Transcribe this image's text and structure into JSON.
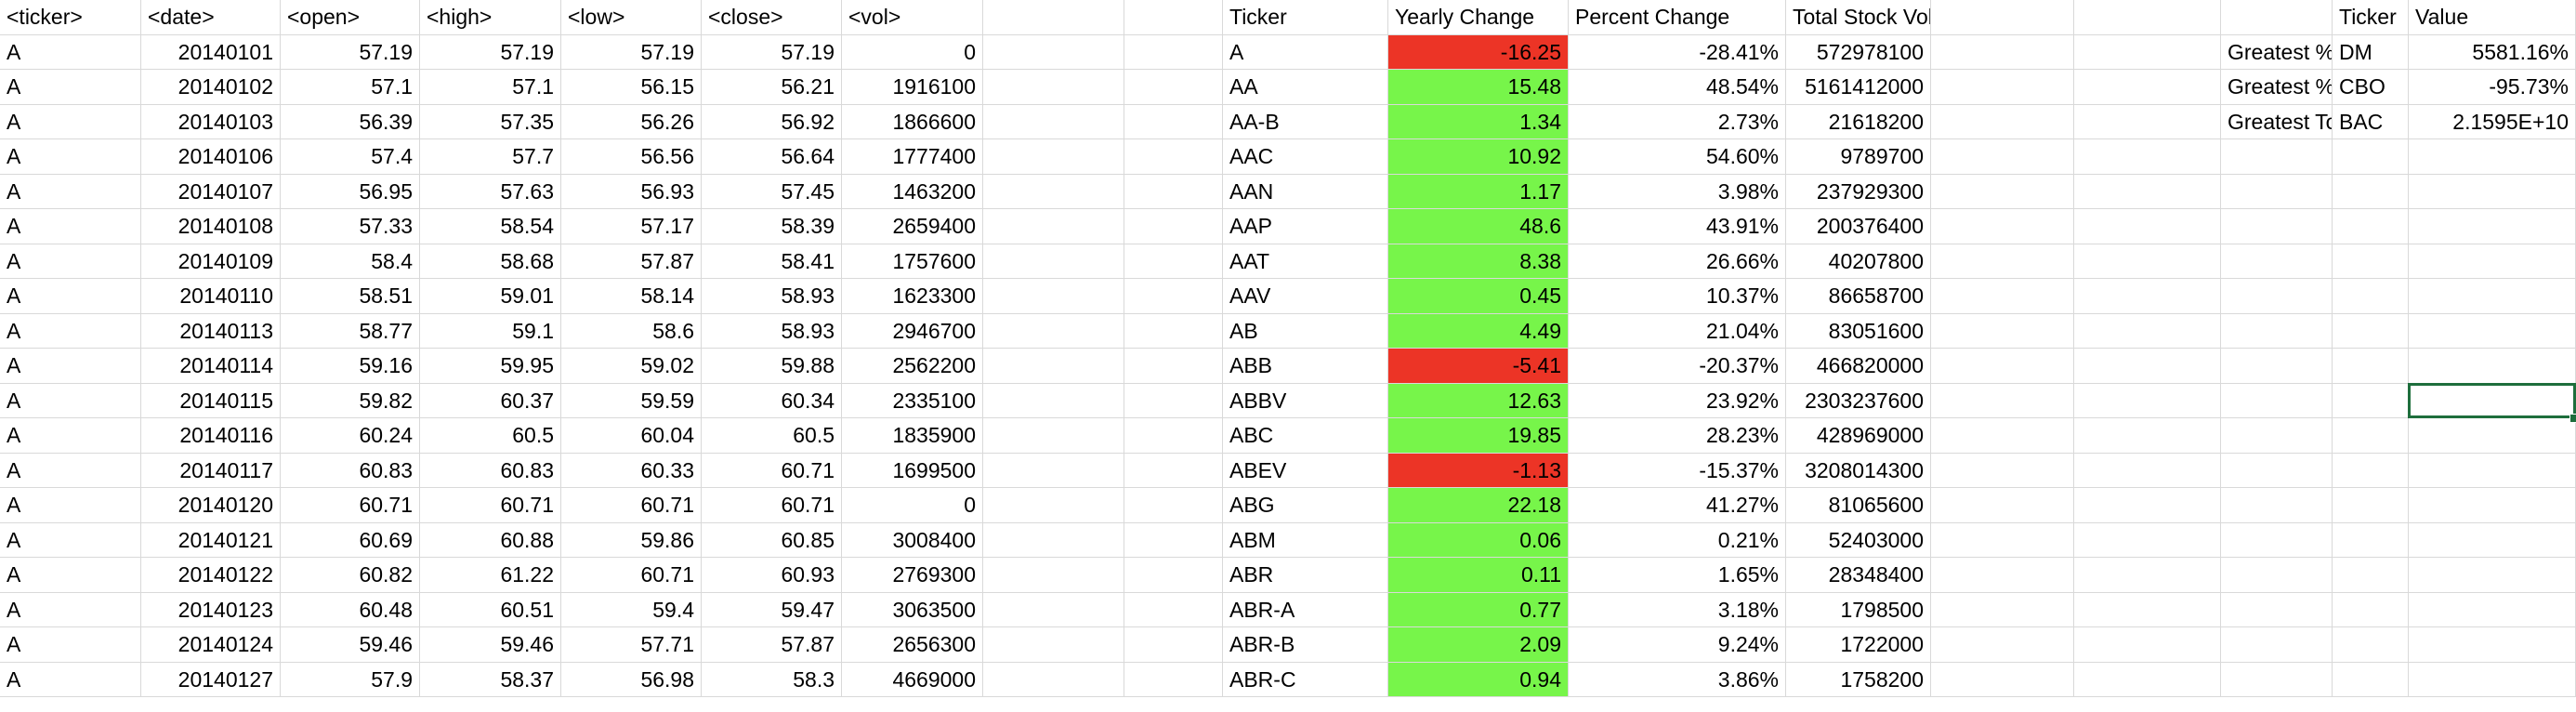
{
  "raw_headers": [
    "<ticker>",
    "<date>",
    "<open>",
    "<high>",
    "<low>",
    "<close>",
    "<vol>"
  ],
  "raw_rows": [
    [
      "A",
      "20140101",
      "57.19",
      "57.19",
      "57.19",
      "57.19",
      "0"
    ],
    [
      "A",
      "20140102",
      "57.1",
      "57.1",
      "56.15",
      "56.21",
      "1916100"
    ],
    [
      "A",
      "20140103",
      "56.39",
      "57.35",
      "56.26",
      "56.92",
      "1866600"
    ],
    [
      "A",
      "20140106",
      "57.4",
      "57.7",
      "56.56",
      "56.64",
      "1777400"
    ],
    [
      "A",
      "20140107",
      "56.95",
      "57.63",
      "56.93",
      "57.45",
      "1463200"
    ],
    [
      "A",
      "20140108",
      "57.33",
      "58.54",
      "57.17",
      "58.39",
      "2659400"
    ],
    [
      "A",
      "20140109",
      "58.4",
      "58.68",
      "57.87",
      "58.41",
      "1757600"
    ],
    [
      "A",
      "20140110",
      "58.51",
      "59.01",
      "58.14",
      "58.93",
      "1623300"
    ],
    [
      "A",
      "20140113",
      "58.77",
      "59.1",
      "58.6",
      "58.93",
      "2946700"
    ],
    [
      "A",
      "20140114",
      "59.16",
      "59.95",
      "59.02",
      "59.88",
      "2562200"
    ],
    [
      "A",
      "20140115",
      "59.82",
      "60.37",
      "59.59",
      "60.34",
      "2335100"
    ],
    [
      "A",
      "20140116",
      "60.24",
      "60.5",
      "60.04",
      "60.5",
      "1835900"
    ],
    [
      "A",
      "20140117",
      "60.83",
      "60.83",
      "60.33",
      "60.71",
      "1699500"
    ],
    [
      "A",
      "20140120",
      "60.71",
      "60.71",
      "60.71",
      "60.71",
      "0"
    ],
    [
      "A",
      "20140121",
      "60.69",
      "60.88",
      "59.86",
      "60.85",
      "3008400"
    ],
    [
      "A",
      "20140122",
      "60.82",
      "61.22",
      "60.71",
      "60.93",
      "2769300"
    ],
    [
      "A",
      "20140123",
      "60.48",
      "60.51",
      "59.4",
      "59.47",
      "3063500"
    ],
    [
      "A",
      "20140124",
      "59.46",
      "59.46",
      "57.71",
      "57.87",
      "2656300"
    ],
    [
      "A",
      "20140127",
      "57.9",
      "58.37",
      "56.98",
      "58.3",
      "4669000"
    ]
  ],
  "summary_headers": [
    "Ticker",
    "Yearly Change",
    "Percent Change",
    "Total Stock Volume"
  ],
  "summary_rows": [
    [
      "A",
      "-16.25",
      "-28.41%",
      "572978100"
    ],
    [
      "AA",
      "15.48",
      "48.54%",
      "5161412000"
    ],
    [
      "AA-B",
      "1.34",
      "2.73%",
      "21618200"
    ],
    [
      "AAC",
      "10.92",
      "54.60%",
      "9789700"
    ],
    [
      "AAN",
      "1.17",
      "3.98%",
      "237929300"
    ],
    [
      "AAP",
      "48.6",
      "43.91%",
      "200376400"
    ],
    [
      "AAT",
      "8.38",
      "26.66%",
      "40207800"
    ],
    [
      "AAV",
      "0.45",
      "10.37%",
      "86658700"
    ],
    [
      "AB",
      "4.49",
      "21.04%",
      "83051600"
    ],
    [
      "ABB",
      "-5.41",
      "-20.37%",
      "466820000"
    ],
    [
      "ABBV",
      "12.63",
      "23.92%",
      "2303237600"
    ],
    [
      "ABC",
      "19.85",
      "28.23%",
      "428969000"
    ],
    [
      "ABEV",
      "-1.13",
      "-15.37%",
      "3208014300"
    ],
    [
      "ABG",
      "22.18",
      "41.27%",
      "81065600"
    ],
    [
      "ABM",
      "0.06",
      "0.21%",
      "52403000"
    ],
    [
      "ABR",
      "0.11",
      "1.65%",
      "28348400"
    ],
    [
      "ABR-A",
      "0.77",
      "3.18%",
      "1798500"
    ],
    [
      "ABR-B",
      "2.09",
      "9.24%",
      "1722000"
    ],
    [
      "ABR-C",
      "0.94",
      "3.86%",
      "1758200"
    ]
  ],
  "greatest_headers": [
    "Ticker",
    "Value"
  ],
  "greatest_rows": [
    [
      "Greatest % Increase",
      "DM",
      "5581.16%"
    ],
    [
      "Greatest % Decrease",
      "CBO",
      "-95.73%"
    ],
    [
      "Greatest Total Volume",
      "BAC",
      "2.1595E+10"
    ]
  ],
  "colors": {
    "positive_fill": "#77f54a",
    "negative_fill": "#ec3426",
    "gridline": "#d9d9d9",
    "selection": "#1e6e3c"
  }
}
